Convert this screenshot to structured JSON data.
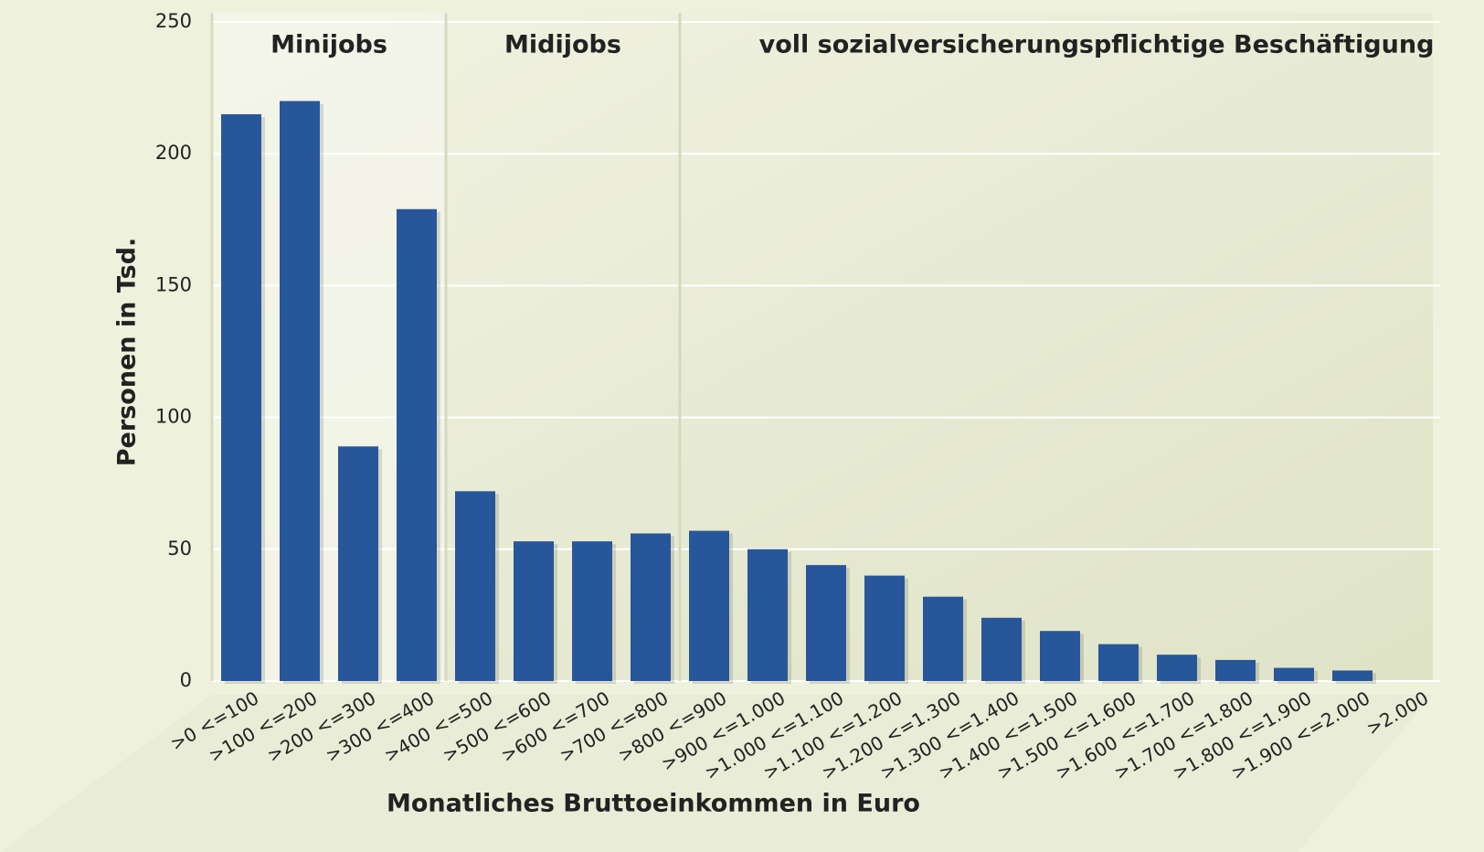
{
  "chart_data": {
    "type": "bar",
    "annotations": [
      "Minijobs",
      "Midijobs",
      "voll sozialversicherungspflichtige Beschäftigung"
    ],
    "x_label": "Monatliches Bruttoeinkommen in Euro",
    "y_label": "Personen in Tsd.",
    "categories": [
      ">0 <=100",
      ">100 <=200",
      ">200 <=300",
      ">300 <=400",
      ">400 <=500",
      ">500 <=600",
      ">600 <=700",
      ">700 <=800",
      ">800 <=900",
      ">900 <=1.000",
      ">1.000 <=1.100",
      ">1.100 <=1.200",
      ">1.200 <=1.300",
      ">1.300 <=1.400",
      ">1.400 <=1.500",
      ">1.500 <=1.600",
      ">1.600 <=1.700",
      ">1.700 <=1.800",
      ">1.800 <=1.900",
      ">1.900 <=2.000",
      ">2.000"
    ],
    "values": [
      215,
      220,
      89,
      179,
      72,
      53,
      53,
      56,
      57,
      50,
      44,
      40,
      32,
      24,
      19,
      14,
      10,
      8,
      5,
      4,
      0
    ],
    "color": "#27579a",
    "ylim": [
      0,
      250
    ],
    "yticks": [
      0,
      50,
      100,
      150,
      200,
      250
    ],
    "grid": true
  }
}
